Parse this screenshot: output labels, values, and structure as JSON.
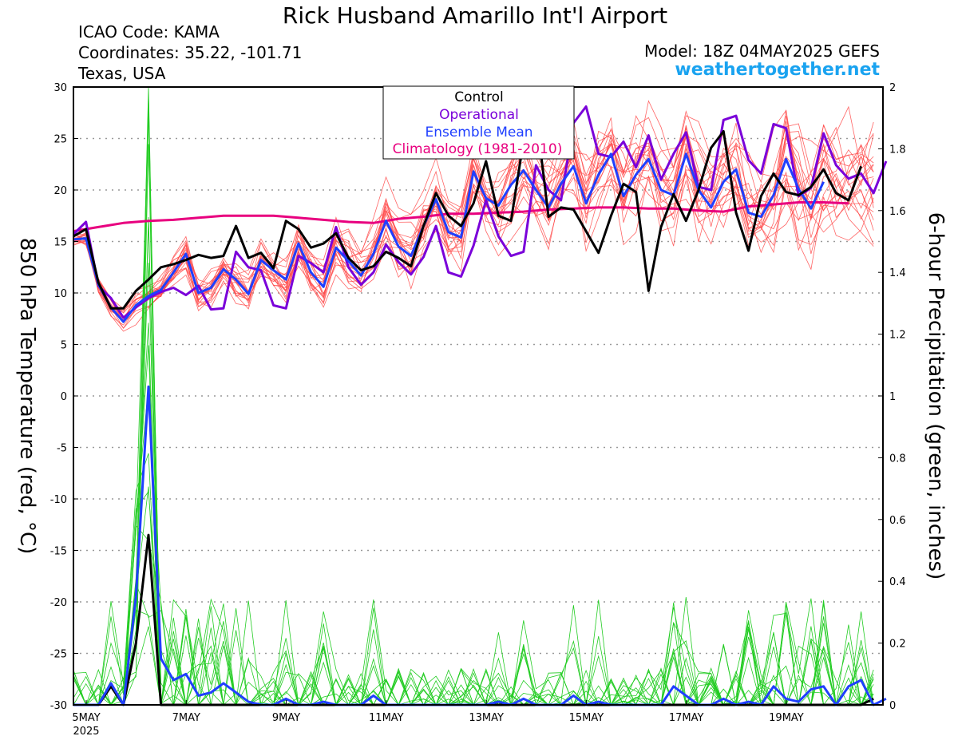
{
  "header": {
    "title": "Rick Husband Amarillo Int'l Airport",
    "icao": "ICAO Code: KAMA",
    "coords": "Coordinates: 35.22, -101.71",
    "location": "Texas, USA",
    "model": "Model: 18Z 04MAY2025 GEFS",
    "site": "weathertogether.net"
  },
  "colors": {
    "control": "#000000",
    "operational": "#7a00d9",
    "ensemble_mean": "#1f3fff",
    "climatology": "#e8007f",
    "member_temp": "#ff4a4a",
    "member_precip": "#22cc22"
  },
  "chart_data": {
    "type": "line",
    "x_start": "2025-05-05 00Z",
    "x_step_hours": 6,
    "x_tick_labels": [
      "5MAY",
      "7MAY",
      "9MAY",
      "11MAY",
      "13MAY",
      "15MAY",
      "17MAY",
      "19MAY"
    ],
    "x_year_label": "2025",
    "ylabel_left": "850 hPa Temperature (red, °C)",
    "ylabel_right": "6-hour Precipitation (green, inches)",
    "ylim_left": [
      -30,
      30
    ],
    "ylim_right": [
      0,
      2
    ],
    "yticks_left": [
      "30",
      "25",
      "20",
      "15",
      "10",
      "5",
      "0",
      "-5",
      "-10",
      "-15",
      "-20",
      "-25",
      "-30"
    ],
    "yticks_right": [
      "2",
      "1.8",
      "1.6",
      "1.4",
      "1.2",
      "1",
      "0.8",
      "0.6",
      "0.4",
      "0.2",
      "0"
    ],
    "grid": "horizontal dotted",
    "legend_position": "top-center",
    "legend": [
      "Control",
      "Operational",
      "Ensemble Mean",
      "Climatology (1981-2010)"
    ],
    "series": [
      {
        "name": "Control",
        "axis": "temp",
        "values": [
          15.5,
          16.2,
          11.0,
          8.5,
          8.5,
          10.2,
          11.3,
          12.5,
          12.8,
          13.2,
          13.7,
          13.4,
          13.6,
          16.5,
          13.4,
          13.9,
          12.4,
          17.0,
          16.2,
          14.4,
          14.8,
          15.8,
          13.4,
          12.2,
          12.6,
          14.0,
          13.4,
          12.6,
          16.5,
          19.7,
          17.5,
          16.5,
          18.7,
          22.8,
          17.5,
          17.0,
          24.8,
          27.5,
          17.4,
          18.3,
          18.1,
          16.0,
          13.9,
          17.5,
          20.6,
          19.8,
          10.2,
          16.4,
          19.6,
          17.0,
          20.0,
          24.1,
          25.7,
          17.8,
          14.1,
          19.4,
          21.6,
          19.8,
          19.5,
          20.3,
          22.0,
          19.7,
          19.0,
          22.3
        ]
      },
      {
        "name": "Operational",
        "axis": "temp",
        "values": [
          15.7,
          16.9,
          10.7,
          9.5,
          7.6,
          8.6,
          9.5,
          10.1,
          10.5,
          9.8,
          10.7,
          8.4,
          8.5,
          14.0,
          12.5,
          12.2,
          8.8,
          8.5,
          13.6,
          12.9,
          12.0,
          16.4,
          12.5,
          10.8,
          12.0,
          14.7,
          13.0,
          11.8,
          13.5,
          16.5,
          12.0,
          11.6,
          14.6,
          19.0,
          15.5,
          13.6,
          14.0,
          22.4,
          20.0,
          19.0,
          26.5,
          28.1,
          23.5,
          23.2,
          24.7,
          22.2,
          25.3,
          21.0,
          23.5,
          25.6,
          20.3,
          20.0,
          26.8,
          27.2,
          22.9,
          21.6,
          26.4,
          26.0,
          19.4,
          20.2,
          25.5,
          22.4,
          21.1,
          21.6,
          19.7,
          22.8
        ]
      },
      {
        "name": "Ensemble Mean",
        "axis": "temp",
        "values": [
          15.2,
          15.3,
          10.8,
          8.6,
          7.2,
          8.8,
          9.7,
          10.3,
          12.0,
          13.8,
          10.0,
          10.5,
          12.3,
          11.3,
          9.9,
          13.2,
          12.2,
          11.3,
          14.8,
          12.0,
          10.6,
          14.4,
          13.1,
          11.7,
          13.8,
          17.0,
          14.5,
          13.6,
          16.5,
          19.1,
          15.9,
          15.4,
          21.8,
          19.2,
          18.5,
          20.5,
          21.9,
          20.0,
          18.3,
          20.6,
          22.3,
          18.7,
          21.5,
          23.5,
          19.4,
          21.5,
          23.0,
          20.0,
          19.5,
          23.5,
          20.0,
          18.3,
          20.8,
          22.0,
          17.8,
          17.4,
          19.5,
          23.0,
          20.1,
          18.2,
          20.8
        ]
      },
      {
        "name": "Climatology (1981-2010)",
        "axis": "temp",
        "values": [
          16.0,
          16.4,
          16.8,
          17.0,
          17.1,
          17.3,
          17.5,
          17.5,
          17.5,
          17.3,
          17.1,
          16.9,
          16.8,
          17.2,
          17.4,
          17.7,
          17.7,
          17.8,
          17.9,
          18.1,
          18.2,
          18.3,
          18.3,
          18.2,
          18.2,
          18.0,
          17.9,
          18.4,
          18.6,
          18.8,
          18.8,
          18.7
        ]
      },
      {
        "name": "Control precipitation",
        "axis": "precip",
        "values": [
          0.0,
          0.0,
          0.0,
          0.06,
          0.0,
          0.2,
          0.55,
          0.0,
          0.0,
          0.0,
          0.0,
          0.0,
          0.0,
          0.0,
          0.0,
          0.0,
          0.0,
          0.0,
          0.0,
          0.0,
          0.0,
          0.0,
          0.0,
          0.0,
          0.0,
          0.0,
          0.0,
          0.0,
          0.0,
          0.0,
          0.0,
          0.0,
          0.0,
          0.0,
          0.0,
          0.0,
          0.0,
          0.0,
          0.0,
          0.0,
          0.0,
          0.0,
          0.0,
          0.0,
          0.0,
          0.0,
          0.0,
          0.0,
          0.0,
          0.0,
          0.0,
          0.0,
          0.0,
          0.0,
          0.0,
          0.0,
          0.0,
          0.0,
          0.0,
          0.0,
          0.0,
          0.0,
          0.0,
          0.0,
          0.02
        ]
      },
      {
        "name": "Ensemble mean precipitation",
        "axis": "precip",
        "values": [
          0.0,
          0.0,
          0.0,
          0.07,
          0.0,
          0.35,
          1.03,
          0.15,
          0.08,
          0.1,
          0.03,
          0.04,
          0.07,
          0.04,
          0.01,
          0.0,
          0.0,
          0.02,
          0.0,
          0.0,
          0.01,
          0.0,
          0.0,
          0.0,
          0.03,
          0.0,
          0.0,
          0.0,
          0.0,
          0.0,
          0.0,
          0.0,
          0.0,
          0.0,
          0.01,
          0.0,
          0.02,
          0.0,
          0.0,
          0.0,
          0.03,
          0.0,
          0.01,
          0.0,
          0.0,
          0.0,
          0.0,
          0.0,
          0.06,
          0.03,
          0.0,
          0.0,
          0.02,
          0.0,
          0.01,
          0.0,
          0.06,
          0.02,
          0.01,
          0.05,
          0.06,
          0.0,
          0.06,
          0.08,
          0.0,
          0.02
        ]
      }
    ]
  }
}
